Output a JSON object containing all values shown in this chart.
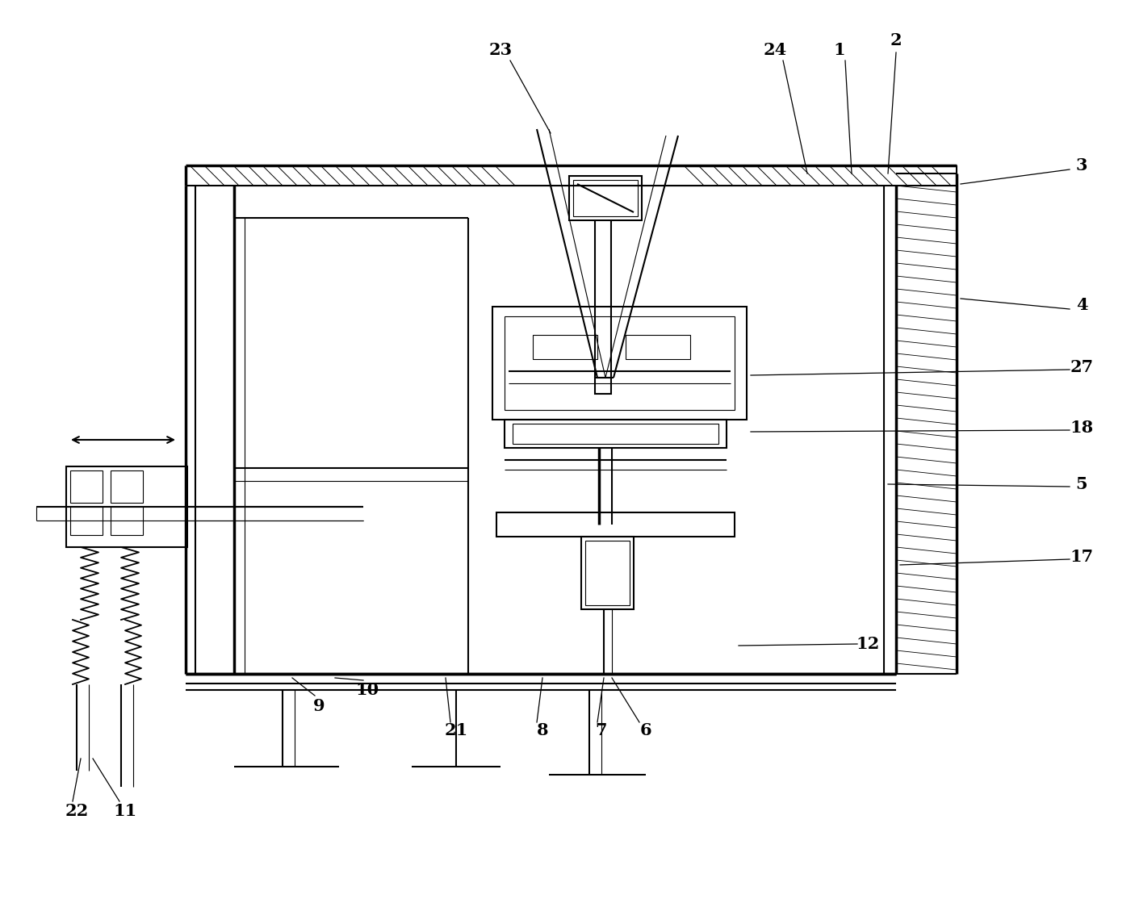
{
  "bg_color": "#ffffff",
  "fig_width": 14.06,
  "fig_height": 11.45
}
